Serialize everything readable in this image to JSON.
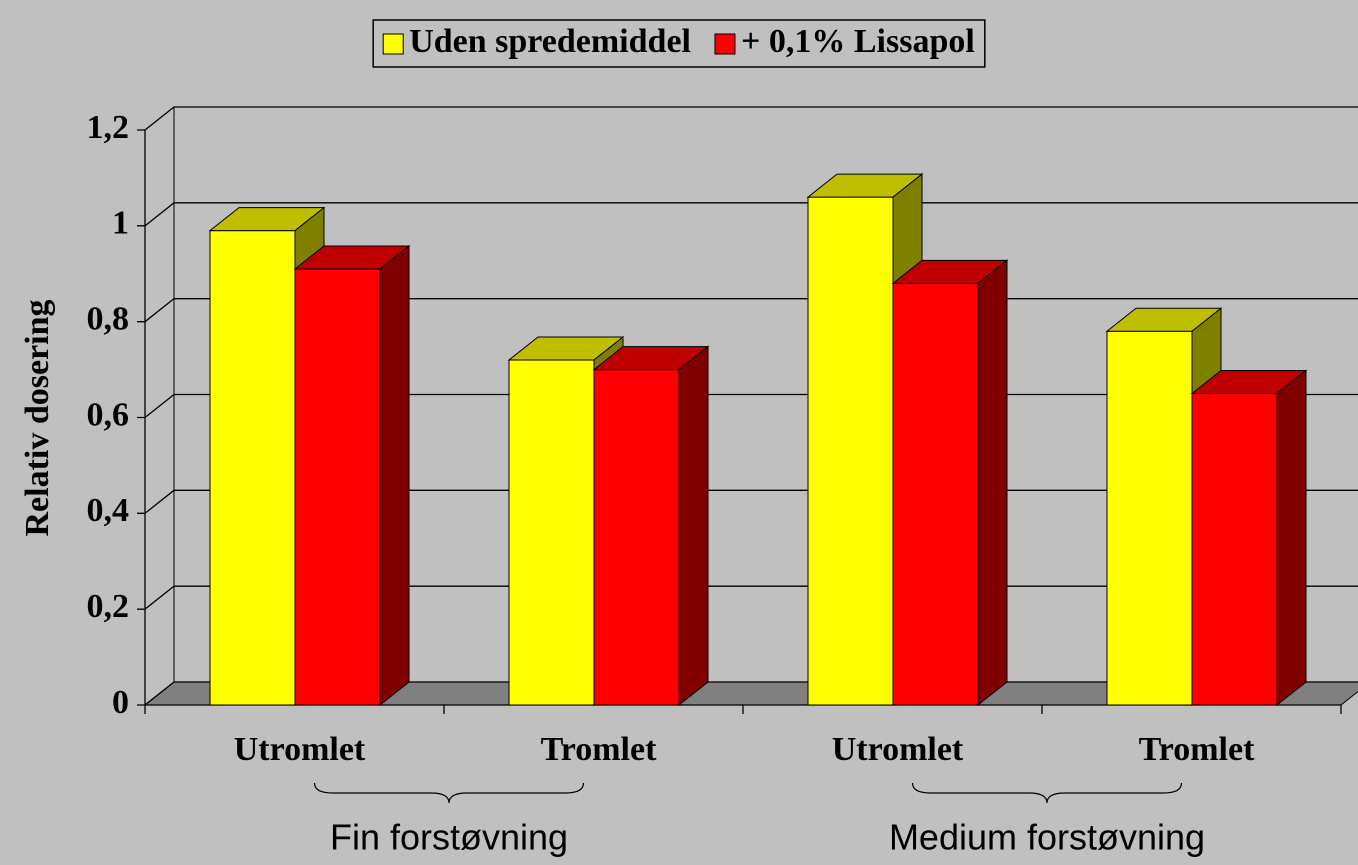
{
  "chart_data": {
    "type": "bar3d",
    "categories": [
      "Utromlet",
      "Tromlet",
      "Utromlet",
      "Tromlet"
    ],
    "groups": [
      "Fin forstøvning",
      "Medium forstøvning"
    ],
    "y_label": "Relativ dosering",
    "series": [
      {
        "name": "Uden spredemiddel",
        "color": "#ffff00",
        "values": [
          0.99,
          0.72,
          1.06,
          0.78
        ]
      },
      {
        "name": "+ 0,1% Lissapol",
        "color": "#ff0000",
        "values": [
          0.91,
          0.7,
          0.88,
          0.65
        ]
      }
    ],
    "ylim": [
      0,
      1.2
    ],
    "yticks": [
      0,
      {
        "value": 0.2,
        "label": "0,2"
      },
      {
        "value": 0.4,
        "label": "0,4"
      },
      {
        "value": 0.6,
        "label": "0,6"
      },
      {
        "value": 0.8,
        "label": "0,8"
      },
      1,
      {
        "value": 1.2,
        "label": "1,2"
      }
    ],
    "grid": true,
    "legend": "top"
  }
}
